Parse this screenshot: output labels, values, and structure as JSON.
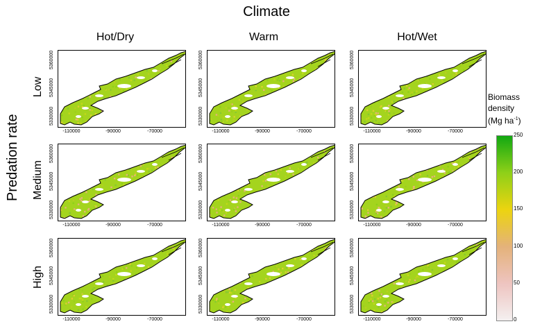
{
  "figure": {
    "title": "Climate",
    "side_label": "Predation rate",
    "columns": [
      "Hot/Dry",
      "Warm",
      "Hot/Wet"
    ],
    "rows": [
      "Low",
      "Medium",
      "High"
    ],
    "x_ticks": [
      "-110000",
      "-90000",
      "-70000"
    ],
    "y_ticks": [
      "5360000",
      "5345000",
      "5330000"
    ]
  },
  "legend": {
    "title_lines": [
      "Biomass",
      "density"
    ],
    "unit_prefix": "(Mg ha",
    "unit_sup": "-1",
    "unit_suffix": ")",
    "ticks": [
      "250",
      "200",
      "150",
      "100",
      "50",
      "0"
    ],
    "range": [
      0,
      250
    ],
    "colors": [
      "#f4f0f0",
      "#eec4c0",
      "#e4b27a",
      "#ecd410",
      "#8fd018",
      "#12a812"
    ]
  }
}
